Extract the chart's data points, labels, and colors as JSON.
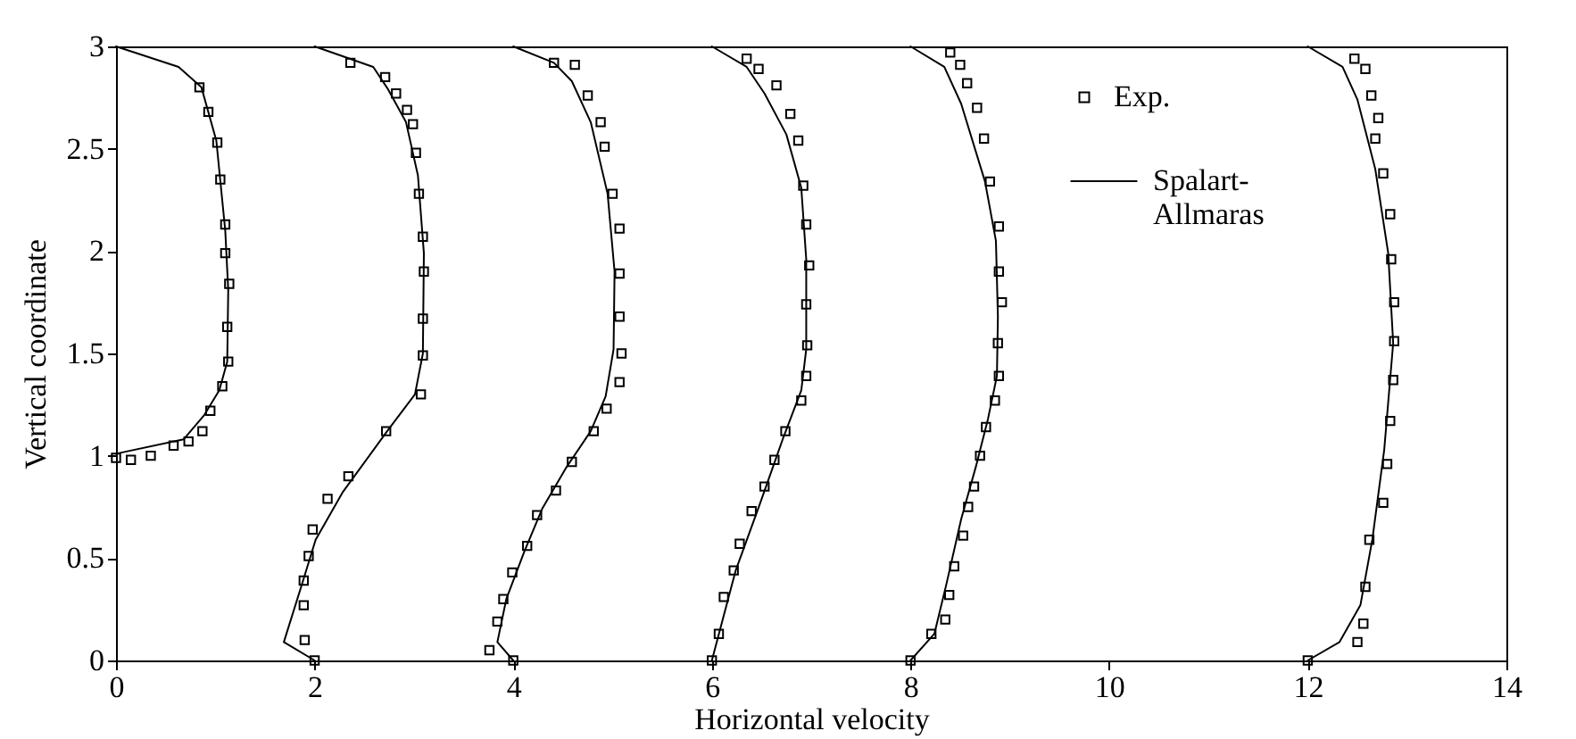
{
  "chart_data": {
    "type": "scatter",
    "xlabel": "Horizontal velocity",
    "ylabel": "Vertical coordinate",
    "xlim": [
      0,
      14
    ],
    "xticks": [
      0,
      2,
      4,
      6,
      8,
      10,
      12,
      14
    ],
    "ylim": [
      0,
      3
    ],
    "yticks": [
      0,
      0.5,
      1,
      1.5,
      2,
      2.5,
      3
    ],
    "grid": false,
    "legend": "top right",
    "series": [
      {
        "name": "Exp.",
        "color": "#000000",
        "marker": "square",
        "x": [
          0.84,
          0.93,
          1.02,
          1.05,
          1.1,
          1.1,
          1.14,
          1.12,
          1.13,
          1.07,
          0.95,
          0.87,
          0.73,
          0.58,
          0.35,
          0.15,
          0,
          2.36,
          2.71,
          2.82,
          2.93,
          2.99,
          3.02,
          3.05,
          3.09,
          3.1,
          3.09,
          3.09,
          3.07,
          2.72,
          2.34,
          2.13,
          1.98,
          1.94,
          1.89,
          1.89,
          1.9,
          2.0,
          4.41,
          4.62,
          4.75,
          4.88,
          4.92,
          5.0,
          5.07,
          5.07,
          5.07,
          5.09,
          5.07,
          4.94,
          4.81,
          4.59,
          4.43,
          4.24,
          4.14,
          3.99,
          3.9,
          3.84,
          3.76,
          4.0,
          6.35,
          6.47,
          6.65,
          6.79,
          6.87,
          6.92,
          6.95,
          6.98,
          6.95,
          6.96,
          6.95,
          6.9,
          6.74,
          6.63,
          6.53,
          6.4,
          6.28,
          6.22,
          6.12,
          6.07,
          6.0,
          8.4,
          8.5,
          8.57,
          8.67,
          8.74,
          8.8,
          8.89,
          8.89,
          8.92,
          8.88,
          8.89,
          8.85,
          8.76,
          8.7,
          8.64,
          8.58,
          8.53,
          8.44,
          8.39,
          8.35,
          8.21,
          8.0,
          12.47,
          12.58,
          12.64,
          12.71,
          12.68,
          12.76,
          12.83,
          12.84,
          12.87,
          12.87,
          12.86,
          12.83,
          12.8,
          12.76,
          12.62,
          12.58,
          12.56,
          12.5,
          12.0
        ],
        "values": [
          2.8,
          2.68,
          2.53,
          2.35,
          2.13,
          1.99,
          1.84,
          1.63,
          1.46,
          1.34,
          1.22,
          1.12,
          1.07,
          1.05,
          1.0,
          0.98,
          0.99,
          2.92,
          2.85,
          2.77,
          2.69,
          2.62,
          2.48,
          2.28,
          2.07,
          1.9,
          1.67,
          1.49,
          1.3,
          1.12,
          0.9,
          0.79,
          0.64,
          0.51,
          0.39,
          0.27,
          0.1,
          0,
          2.92,
          2.91,
          2.76,
          2.63,
          2.51,
          2.28,
          2.11,
          1.89,
          1.68,
          1.5,
          1.36,
          1.23,
          1.12,
          0.97,
          0.83,
          0.71,
          0.56,
          0.43,
          0.3,
          0.19,
          0.05,
          0,
          2.94,
          2.89,
          2.81,
          2.67,
          2.54,
          2.32,
          2.13,
          1.93,
          1.74,
          1.54,
          1.39,
          1.27,
          1.12,
          0.98,
          0.85,
          0.73,
          0.57,
          0.44,
          0.31,
          0.13,
          0,
          2.97,
          2.91,
          2.82,
          2.7,
          2.55,
          2.34,
          2.12,
          1.9,
          1.75,
          1.55,
          1.39,
          1.27,
          1.14,
          1.0,
          0.85,
          0.75,
          0.61,
          0.46,
          0.32,
          0.2,
          0.13,
          0,
          2.94,
          2.89,
          2.76,
          2.65,
          2.55,
          2.38,
          2.18,
          1.96,
          1.75,
          1.56,
          1.37,
          1.17,
          0.96,
          0.77,
          0.59,
          0.36,
          0.18,
          0.09,
          0
        ]
      },
      {
        "name": "Spalart-Allmaras",
        "type": "line",
        "color": "#000000",
        "x": [
          0,
          0.63,
          0.86,
          1.01,
          1.1,
          1.13,
          1.12,
          1.04,
          0.89,
          0.68,
          0,
          null,
          2.0,
          2.59,
          2.74,
          2.92,
          3.04,
          3.1,
          3.09,
          3.01,
          2.73,
          2.28,
          2.01,
          1.89,
          1.69,
          2.0,
          null,
          4.0,
          4.41,
          4.59,
          4.78,
          4.95,
          5.02,
          5.01,
          4.93,
          4.78,
          4.53,
          4.29,
          4.11,
          3.93,
          3.84,
          4.0,
          null,
          6.0,
          6.35,
          6.53,
          6.75,
          6.9,
          6.95,
          6.95,
          6.9,
          6.72,
          6.48,
          6.24,
          6.0,
          null,
          8.0,
          8.34,
          8.51,
          8.75,
          8.86,
          8.88,
          8.87,
          8.78,
          8.66,
          8.51,
          8.36,
          8.24,
          8.0,
          null,
          12.0,
          12.35,
          12.5,
          12.68,
          12.81,
          12.86,
          12.77,
          12.65,
          12.53,
          12.32,
          12.0
        ],
        "values": [
          3,
          2.9,
          2.8,
          2.54,
          2.1,
          1.81,
          1.46,
          1.32,
          1.2,
          1.08,
          1.01,
          null,
          3,
          2.9,
          2.79,
          2.63,
          2.37,
          1.99,
          1.5,
          1.3,
          1.12,
          0.82,
          0.59,
          0.4,
          0.09,
          0,
          null,
          3,
          2.92,
          2.83,
          2.63,
          2.28,
          1.9,
          1.52,
          1.29,
          1.12,
          0.94,
          0.74,
          0.53,
          0.3,
          0.09,
          0,
          null,
          3,
          2.9,
          2.77,
          2.57,
          2.31,
          1.96,
          1.52,
          1.32,
          1.09,
          0.76,
          0.44,
          0,
          null,
          3,
          2.9,
          2.72,
          2.34,
          2.05,
          1.68,
          1.39,
          1.18,
          0.95,
          0.69,
          0.37,
          0.13,
          0,
          null,
          3,
          2.9,
          2.74,
          2.4,
          1.99,
          1.55,
          1.03,
          0.59,
          0.27,
          0.09,
          0
        ]
      }
    ]
  }
}
